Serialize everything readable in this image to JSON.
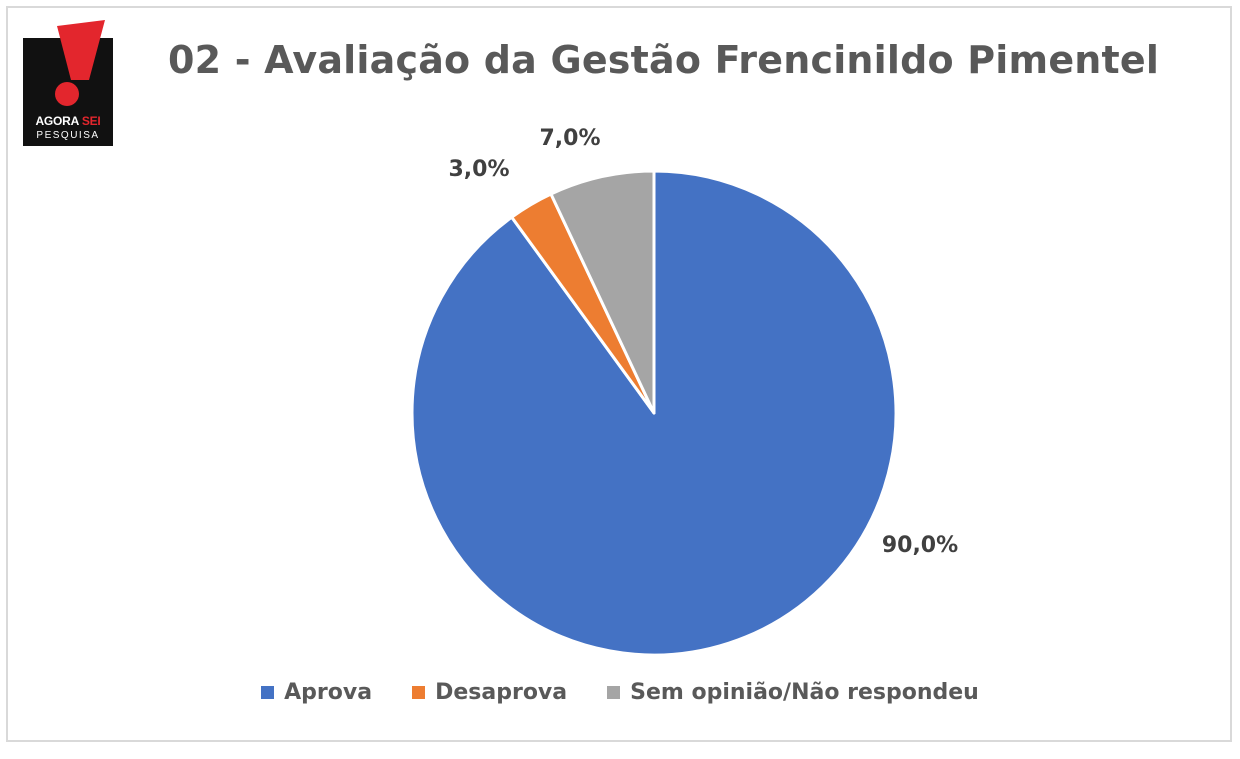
{
  "logo": {
    "line1_a": "AGORA",
    "line1_b": "SEI",
    "line2": "PESQUISA",
    "bg_color": "#111111",
    "accent_color": "#e3262d"
  },
  "chart_data": {
    "type": "pie",
    "title": "02 - Avaliação da Gestão Frencinildo Pimentel",
    "slices": [
      {
        "label": "Aprova",
        "value": 90.0,
        "display": "90,0%",
        "color": "#4472c4"
      },
      {
        "label": "Desaprova",
        "value": 3.0,
        "display": "3,0%",
        "color": "#ed7d31"
      },
      {
        "label": "Sem opinião/Não respondeu",
        "value": 7.0,
        "display": "7,0%",
        "color": "#a5a5a5"
      }
    ],
    "legend_position": "bottom",
    "start": "top",
    "direction": "clockwise"
  }
}
